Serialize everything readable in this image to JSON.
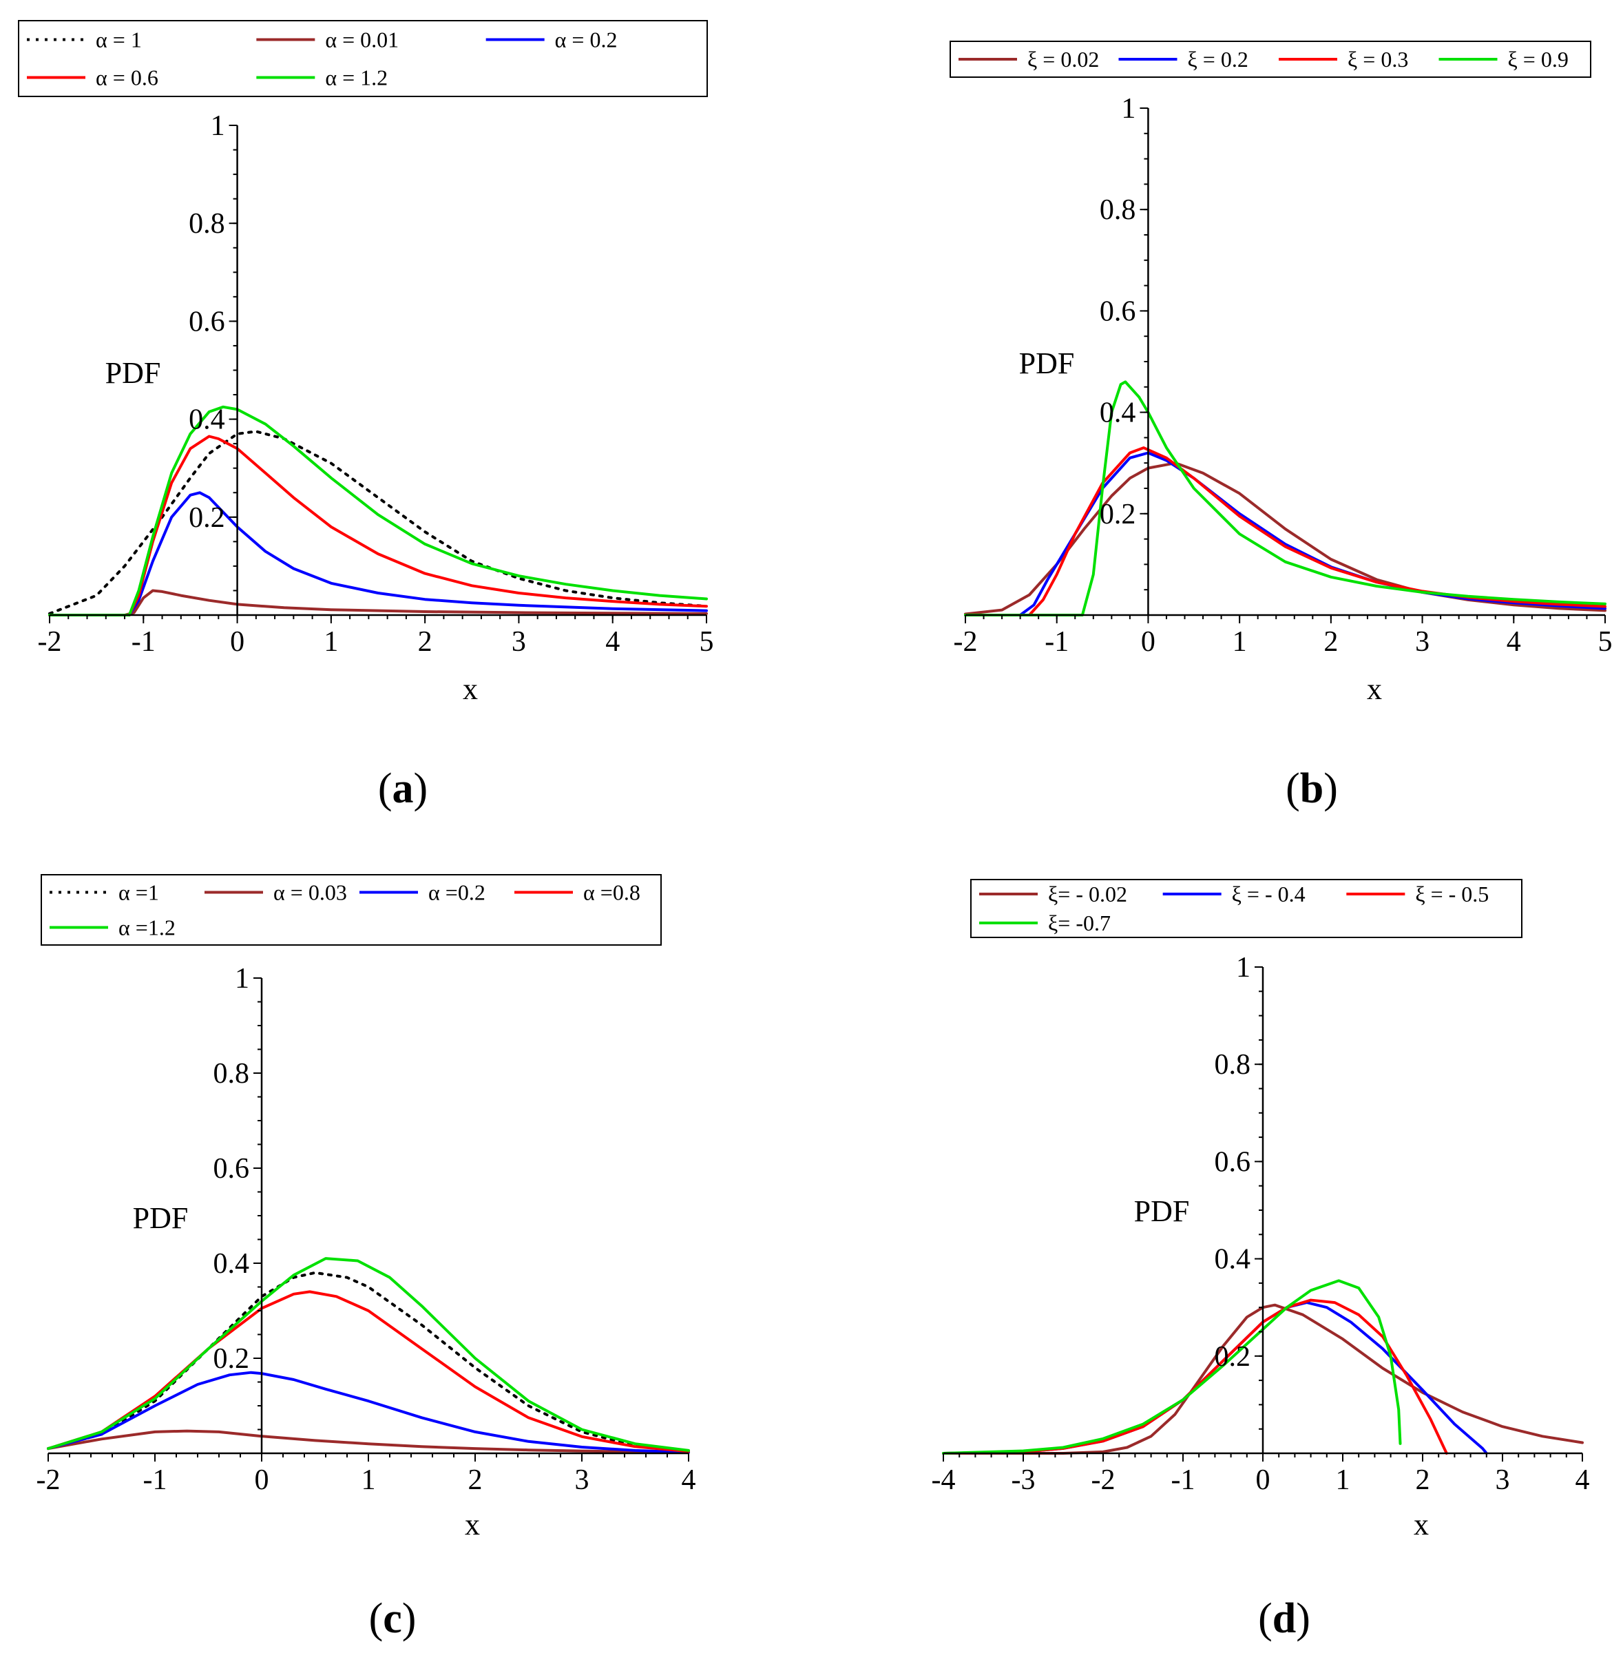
{
  "colors": {
    "black": "#000000",
    "brown": "#9b2a2a",
    "blue": "#0000ff",
    "red": "#ff0000",
    "green": "#00e000"
  },
  "chart_data": [
    {
      "id": "a",
      "type": "line",
      "panel_label": {
        "open": "(",
        "letter": "a",
        "close": ")"
      },
      "xlabel": "x",
      "ylabel": "PDF",
      "xlim": [
        -2,
        5
      ],
      "ylim": [
        0,
        1
      ],
      "x_ticks": [
        -2,
        -1,
        0,
        1,
        2,
        3,
        4,
        5
      ],
      "x_tick_labels": [
        "-2",
        "-1",
        "0",
        "1",
        "2",
        "3",
        "4",
        "5"
      ],
      "y_ticks": [
        0.2,
        0.4,
        0.6,
        0.8,
        1
      ],
      "y_tick_labels": [
        "0.2",
        "0.4",
        "0.6",
        "0.8",
        "1"
      ],
      "legend_position": "top",
      "series": [
        {
          "name": "α = 1",
          "color": "black",
          "dash": "dotted",
          "x": [
            -2,
            -1.5,
            -1.2,
            -1,
            -0.8,
            -0.5,
            -0.3,
            0,
            0.2,
            0.5,
            0.8,
            1,
            1.5,
            2,
            2.5,
            3,
            3.5,
            4,
            4.5,
            5
          ],
          "y": [
            0.003,
            0.04,
            0.1,
            0.15,
            0.2,
            0.28,
            0.33,
            0.37,
            0.375,
            0.36,
            0.33,
            0.31,
            0.24,
            0.17,
            0.11,
            0.075,
            0.05,
            0.035,
            0.025,
            0.018
          ]
        },
        {
          "name": "α = 0.01",
          "color": "brown",
          "dash": "solid",
          "x": [
            -2,
            -1.2,
            -1.1,
            -1,
            -0.9,
            -0.8,
            -0.6,
            -0.3,
            0,
            0.5,
            1,
            2,
            3,
            4,
            5
          ],
          "y": [
            0,
            0,
            0.005,
            0.035,
            0.05,
            0.048,
            0.04,
            0.03,
            0.022,
            0.015,
            0.011,
            0.007,
            0.005,
            0.004,
            0.003
          ]
        },
        {
          "name": "α = 0.2",
          "color": "blue",
          "dash": "solid",
          "x": [
            -2,
            -1.15,
            -1.05,
            -0.9,
            -0.7,
            -0.5,
            -0.4,
            -0.3,
            -0.1,
            0,
            0.3,
            0.6,
            1,
            1.5,
            2,
            2.5,
            3,
            4,
            5
          ],
          "y": [
            0,
            0,
            0.03,
            0.11,
            0.2,
            0.245,
            0.25,
            0.24,
            0.2,
            0.18,
            0.13,
            0.095,
            0.065,
            0.045,
            0.032,
            0.025,
            0.02,
            0.013,
            0.009
          ]
        },
        {
          "name": "α =  0.6",
          "color": "red",
          "dash": "solid",
          "x": [
            -2,
            -1.15,
            -1.05,
            -0.9,
            -0.7,
            -0.5,
            -0.3,
            -0.2,
            0,
            0.3,
            0.6,
            1,
            1.5,
            2,
            2.5,
            3,
            3.5,
            4,
            4.5,
            5
          ],
          "y": [
            0,
            0,
            0.04,
            0.15,
            0.27,
            0.34,
            0.365,
            0.36,
            0.34,
            0.29,
            0.24,
            0.18,
            0.125,
            0.085,
            0.06,
            0.045,
            0.035,
            0.028,
            0.022,
            0.018
          ]
        },
        {
          "name": "α =  1.2",
          "color": "green",
          "dash": "solid",
          "x": [
            -2,
            -1.15,
            -1.05,
            -0.9,
            -0.7,
            -0.5,
            -0.3,
            -0.15,
            0,
            0.3,
            0.6,
            1,
            1.5,
            2,
            2.5,
            3,
            3.5,
            4,
            4.5,
            5
          ],
          "y": [
            0,
            0,
            0.05,
            0.16,
            0.29,
            0.37,
            0.415,
            0.425,
            0.42,
            0.39,
            0.345,
            0.28,
            0.205,
            0.145,
            0.105,
            0.08,
            0.063,
            0.05,
            0.04,
            0.033
          ]
        }
      ]
    },
    {
      "id": "b",
      "type": "line",
      "panel_label": {
        "open": "(",
        "letter": "b",
        "close": ")"
      },
      "xlabel": "x",
      "ylabel": "PDF",
      "xlim": [
        -2,
        5
      ],
      "ylim": [
        0,
        1
      ],
      "x_ticks": [
        -2,
        -1,
        0,
        1,
        2,
        3,
        4,
        5
      ],
      "x_tick_labels": [
        "-2",
        "-1",
        "0",
        "1",
        "2",
        "3",
        "4",
        "5"
      ],
      "y_ticks": [
        0.2,
        0.4,
        0.6,
        0.8,
        1
      ],
      "y_tick_labels": [
        "0.2",
        "0.4",
        "0.6",
        "0.8",
        "1"
      ],
      "legend_position": "top",
      "series": [
        {
          "name": "ξ = 0.02",
          "color": "brown",
          "dash": "solid",
          "x": [
            -2,
            -1.6,
            -1.3,
            -1,
            -0.7,
            -0.4,
            -0.2,
            0,
            0.3,
            0.6,
            1,
            1.5,
            2,
            2.5,
            3,
            3.5,
            4,
            4.5,
            5
          ],
          "y": [
            0.002,
            0.01,
            0.04,
            0.1,
            0.17,
            0.235,
            0.27,
            0.29,
            0.3,
            0.28,
            0.24,
            0.17,
            0.11,
            0.07,
            0.045,
            0.03,
            0.02,
            0.013,
            0.009
          ]
        },
        {
          "name": "ξ = 0.2",
          "color": "blue",
          "dash": "solid",
          "x": [
            -2,
            -1.4,
            -1.25,
            -1.1,
            -0.8,
            -0.5,
            -0.2,
            0,
            0.2,
            0.5,
            1,
            1.5,
            2,
            2.5,
            3,
            3.5,
            4,
            4.5,
            5
          ],
          "y": [
            0,
            0,
            0.02,
            0.07,
            0.16,
            0.25,
            0.31,
            0.32,
            0.305,
            0.27,
            0.2,
            0.14,
            0.095,
            0.065,
            0.045,
            0.032,
            0.024,
            0.018,
            0.013
          ]
        },
        {
          "name": "ξ = 0.3",
          "color": "red",
          "dash": "solid",
          "x": [
            -2,
            -1.3,
            -1.15,
            -1,
            -0.8,
            -0.5,
            -0.2,
            -0.05,
            0.2,
            0.5,
            1,
            1.5,
            2,
            2.5,
            3,
            3.5,
            4,
            4.5,
            5
          ],
          "y": [
            0,
            0,
            0.03,
            0.08,
            0.16,
            0.26,
            0.32,
            0.33,
            0.31,
            0.27,
            0.195,
            0.135,
            0.093,
            0.065,
            0.047,
            0.035,
            0.027,
            0.021,
            0.017
          ]
        },
        {
          "name": "ξ = 0.9",
          "color": "green",
          "dash": "solid",
          "x": [
            -2,
            -0.72,
            -0.6,
            -0.5,
            -0.4,
            -0.3,
            -0.25,
            -0.1,
            0,
            0.2,
            0.5,
            1,
            1.5,
            2,
            2.5,
            3,
            3.5,
            4,
            4.5,
            5
          ],
          "y": [
            0,
            0,
            0.08,
            0.25,
            0.4,
            0.455,
            0.46,
            0.43,
            0.4,
            0.33,
            0.25,
            0.16,
            0.105,
            0.075,
            0.057,
            0.045,
            0.037,
            0.031,
            0.026,
            0.022
          ]
        }
      ]
    },
    {
      "id": "c",
      "type": "line",
      "panel_label": {
        "open": "(",
        "letter": "c",
        "close": ")"
      },
      "xlabel": "x",
      "ylabel": "PDF",
      "xlim": [
        -2,
        4
      ],
      "ylim": [
        0,
        1
      ],
      "x_ticks": [
        -2,
        -1,
        0,
        1,
        2,
        3,
        4
      ],
      "x_tick_labels": [
        "-2",
        "-1",
        "0",
        "1",
        "2",
        "3",
        "4"
      ],
      "y_ticks": [
        0.2,
        0.4,
        0.6,
        0.8,
        1
      ],
      "y_tick_labels": [
        "0.2",
        "0.4",
        "0.6",
        "0.8",
        "1"
      ],
      "legend_position": "top",
      "series": [
        {
          "name": "α =1",
          "color": "black",
          "dash": "dotted",
          "x": [
            -2,
            -1.5,
            -1,
            -0.5,
            0,
            0.3,
            0.5,
            0.8,
            1,
            1.5,
            2,
            2.5,
            3,
            3.5,
            4
          ],
          "y": [
            0.01,
            0.04,
            0.11,
            0.22,
            0.33,
            0.37,
            0.38,
            0.37,
            0.35,
            0.27,
            0.18,
            0.1,
            0.045,
            0.016,
            0.004
          ]
        },
        {
          "name": "α = 0.03",
          "color": "brown",
          "dash": "solid",
          "x": [
            -2,
            -1.5,
            -1,
            -0.7,
            -0.4,
            0,
            0.5,
            1,
            1.5,
            2,
            2.5,
            3,
            3.5,
            4
          ],
          "y": [
            0.01,
            0.03,
            0.045,
            0.047,
            0.045,
            0.036,
            0.027,
            0.02,
            0.014,
            0.01,
            0.007,
            0.005,
            0.003,
            0.002
          ]
        },
        {
          "name": "α =0.2",
          "color": "blue",
          "dash": "solid",
          "x": [
            -2,
            -1.5,
            -1,
            -0.6,
            -0.3,
            -0.1,
            0,
            0.3,
            0.6,
            1,
            1.5,
            2,
            2.5,
            3,
            3.5,
            4
          ],
          "y": [
            0.01,
            0.04,
            0.1,
            0.145,
            0.165,
            0.17,
            0.168,
            0.155,
            0.135,
            0.11,
            0.075,
            0.045,
            0.025,
            0.013,
            0.006,
            0.002
          ]
        },
        {
          "name": "α =0.8",
          "color": "red",
          "dash": "solid",
          "x": [
            -2,
            -1.5,
            -1,
            -0.5,
            0,
            0.3,
            0.45,
            0.7,
            1,
            1.5,
            2,
            2.5,
            3,
            3.5,
            4
          ],
          "y": [
            0.01,
            0.045,
            0.12,
            0.22,
            0.305,
            0.335,
            0.34,
            0.33,
            0.3,
            0.22,
            0.14,
            0.075,
            0.035,
            0.014,
            0.004
          ]
        },
        {
          "name": "α =1.2",
          "color": "green",
          "dash": "solid",
          "x": [
            -2,
            -1.5,
            -1,
            -0.5,
            0,
            0.3,
            0.6,
            0.9,
            1.2,
            1.5,
            2,
            2.5,
            3,
            3.5,
            4
          ],
          "y": [
            0.01,
            0.045,
            0.115,
            0.22,
            0.32,
            0.375,
            0.41,
            0.405,
            0.37,
            0.31,
            0.2,
            0.11,
            0.05,
            0.02,
            0.006
          ]
        }
      ]
    },
    {
      "id": "d",
      "type": "line",
      "panel_label": {
        "open": "(",
        "letter": "d",
        "close": ")"
      },
      "xlabel": "x",
      "ylabel": "PDF",
      "xlim": [
        -4,
        4
      ],
      "ylim": [
        0,
        1
      ],
      "x_ticks": [
        -4,
        -3,
        -2,
        -1,
        0,
        1,
        2,
        3,
        4
      ],
      "x_tick_labels": [
        "-4",
        "-3",
        "-2",
        "-1",
        "0",
        "1",
        "2",
        "3",
        "4"
      ],
      "y_ticks": [
        0.2,
        0.4,
        0.6,
        0.8,
        1
      ],
      "y_tick_labels": [
        "0.2",
        "0.4",
        "0.6",
        "0.8",
        "1"
      ],
      "legend_position": "top",
      "series": [
        {
          "name": "ξ= -  0.02",
          "color": "brown",
          "dash": "solid",
          "x": [
            -4,
            -2.5,
            -2,
            -1.7,
            -1.4,
            -1.1,
            -0.8,
            -0.5,
            -0.2,
            0,
            0.15,
            0.5,
            1,
            1.5,
            2,
            2.5,
            3,
            3.5,
            4
          ],
          "y": [
            0,
            0,
            0.003,
            0.012,
            0.035,
            0.08,
            0.15,
            0.22,
            0.28,
            0.3,
            0.305,
            0.285,
            0.235,
            0.175,
            0.125,
            0.085,
            0.055,
            0.035,
            0.022
          ]
        },
        {
          "name": "ξ = - 0.4",
          "color": "blue",
          "dash": "solid",
          "x": [
            -4,
            -3,
            -2.5,
            -2,
            -1.5,
            -1,
            -0.5,
            0,
            0.3,
            0.55,
            0.8,
            1.1,
            1.5,
            2,
            2.4,
            2.75,
            2.8
          ],
          "y": [
            0,
            0.003,
            0.01,
            0.025,
            0.055,
            0.11,
            0.19,
            0.27,
            0.3,
            0.31,
            0.3,
            0.27,
            0.215,
            0.13,
            0.06,
            0.01,
            0
          ]
        },
        {
          "name": "ξ = - 0.5",
          "color": "red",
          "dash": "solid",
          "x": [
            -4,
            -3,
            -2.5,
            -2,
            -1.5,
            -1,
            -0.5,
            0,
            0.3,
            0.6,
            0.9,
            1.2,
            1.5,
            1.8,
            2.1,
            2.3
          ],
          "y": [
            0,
            0.003,
            0.01,
            0.025,
            0.055,
            0.11,
            0.19,
            0.27,
            0.3,
            0.315,
            0.31,
            0.285,
            0.24,
            0.16,
            0.07,
            0
          ]
        },
        {
          "name": "ξ= -0.7",
          "color": "green",
          "dash": "solid",
          "x": [
            -4,
            -3,
            -2.5,
            -2,
            -1.5,
            -1,
            -0.5,
            0,
            0.3,
            0.6,
            0.95,
            1.2,
            1.45,
            1.6,
            1.7,
            1.72
          ],
          "y": [
            0,
            0.005,
            0.012,
            0.03,
            0.06,
            0.11,
            0.18,
            0.255,
            0.3,
            0.335,
            0.355,
            0.34,
            0.28,
            0.2,
            0.09,
            0.02
          ]
        }
      ]
    }
  ]
}
